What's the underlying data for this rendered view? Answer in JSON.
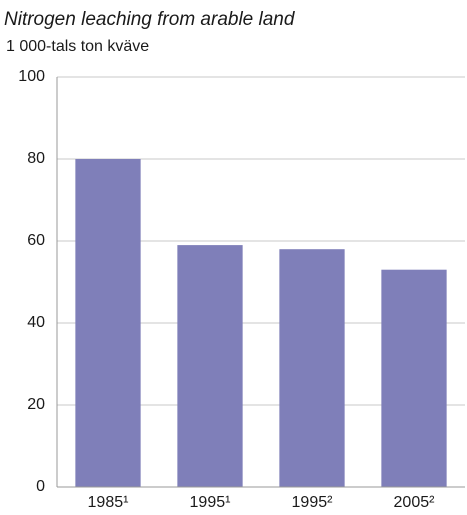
{
  "chart_data": {
    "type": "bar",
    "title": "Nitrogen leaching from arable land",
    "subtitle": "1 000-tals ton kväve",
    "categories": [
      "1985¹",
      "1995¹",
      "1995²",
      "2005²"
    ],
    "values": [
      80,
      59,
      58,
      53
    ],
    "color": "#7f7fb9",
    "ylim": [
      0,
      100
    ],
    "yticks": [
      0,
      20,
      40,
      60,
      80,
      100
    ],
    "grid": true
  }
}
